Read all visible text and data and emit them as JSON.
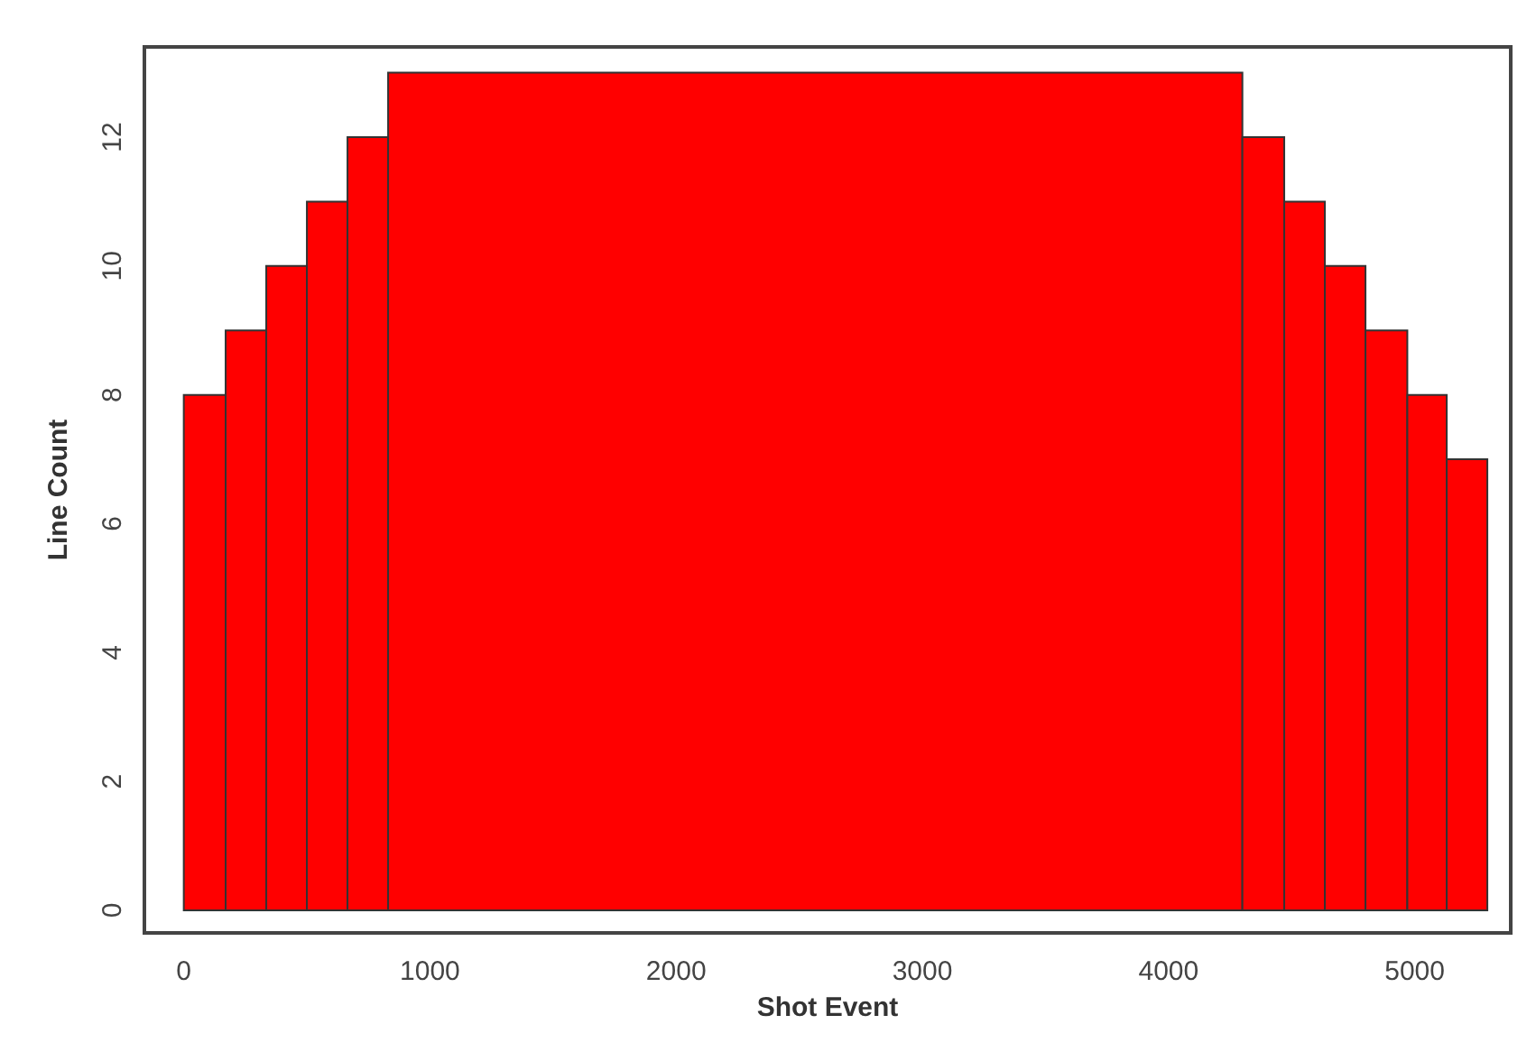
{
  "chart_data": {
    "type": "histogram",
    "xlabel": "Shot Event",
    "ylabel": "Line Count",
    "bins": [
      0,
      170,
      335,
      500,
      665,
      830,
      4300,
      4470,
      4635,
      4800,
      4970,
      5130,
      5295
    ],
    "values": [
      8,
      9,
      10,
      11,
      12,
      13,
      12,
      11,
      10,
      9,
      8,
      7
    ],
    "color": "#ff0000",
    "xlim": [
      -160,
      5390
    ],
    "xticks": [
      0,
      1000,
      2000,
      3000,
      4000,
      5000
    ],
    "ylim": [
      -0.35,
      13.4
    ],
    "yticks": [
      0,
      2,
      4,
      6,
      8,
      10,
      12
    ],
    "grid": false
  }
}
